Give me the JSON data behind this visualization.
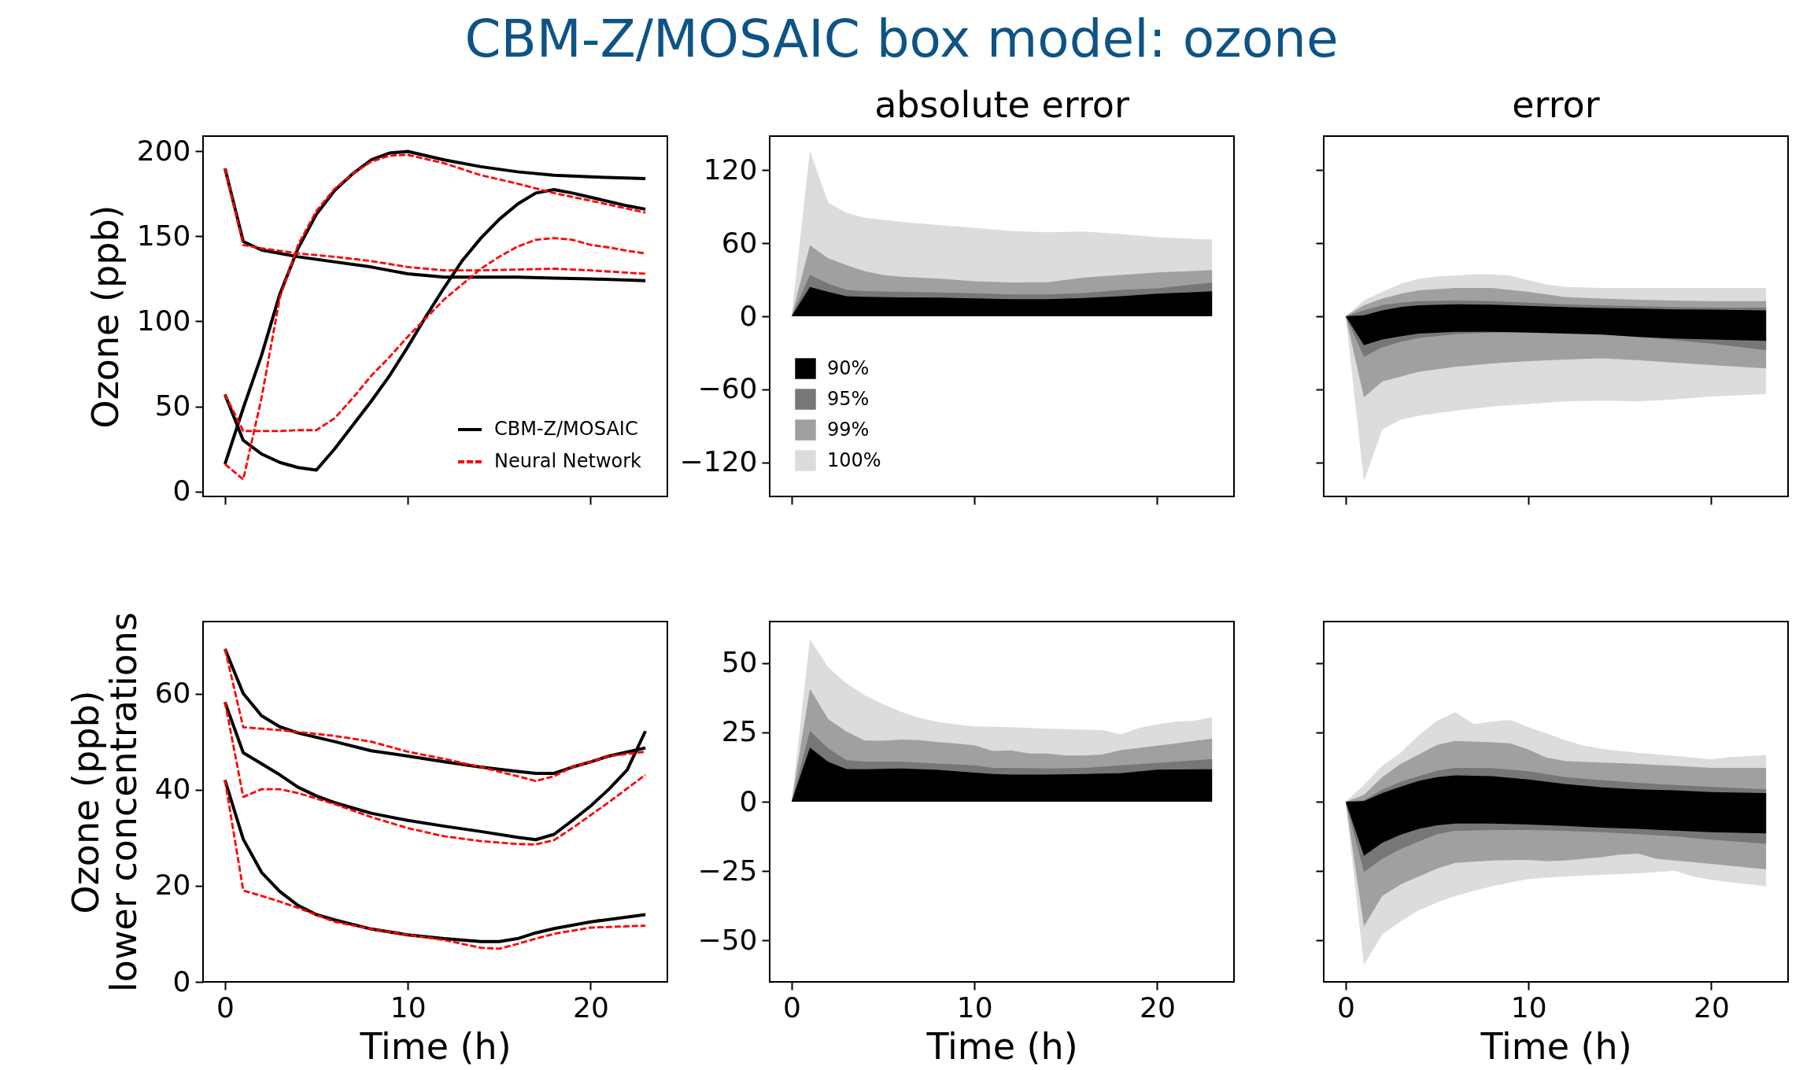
{
  "chart_data": [
    {
      "type": "line",
      "title": "CBM-Z/MOSAIC box model: ozone",
      "ylabel": "Ozone (ppb)",
      "xlim": [
        -1.2,
        24.2
      ],
      "xticks": [
        0,
        10,
        20
      ],
      "ylim": [
        -3,
        209
      ],
      "yticks": [
        0,
        50,
        100,
        150,
        200
      ],
      "tick_labels": "y",
      "legend": "bottom right",
      "series": [
        {
          "name": "CBM-Z/MOSAIC",
          "color": "#000000",
          "x": [
            0,
            1,
            2,
            4,
            6,
            8,
            10,
            12,
            14,
            16,
            18,
            20,
            23
          ],
          "values": [
            190,
            147,
            142,
            138,
            135,
            132,
            128,
            126,
            126,
            126,
            125.5,
            125,
            124
          ]
        },
        {
          "color": "#000000",
          "x": [
            0,
            1,
            2,
            3,
            4,
            5,
            6,
            7,
            8,
            9,
            10,
            12,
            14,
            16,
            18,
            20,
            23
          ],
          "values": [
            16,
            49,
            80,
            116,
            143,
            163,
            177,
            187,
            195,
            199,
            200,
            195,
            191,
            188,
            186,
            185,
            184
          ]
        },
        {
          "color": "#000000",
          "x": [
            0,
            1,
            2,
            3,
            4,
            5,
            6,
            7,
            8,
            9,
            10,
            11,
            12,
            13,
            14,
            15,
            16,
            17,
            18,
            19,
            20,
            21,
            22,
            23
          ],
          "values": [
            57,
            30,
            22,
            17,
            14,
            12.5,
            25,
            39,
            53,
            68,
            85,
            103,
            120,
            136,
            149,
            160,
            169,
            175.5,
            177.5,
            175.5,
            173,
            170.5,
            168,
            166
          ]
        },
        {
          "name": "Neural Network",
          "color": "#ff0000",
          "line_style": "dashed",
          "x": [
            0,
            1,
            2,
            4,
            6,
            8,
            10,
            12,
            14,
            16,
            18,
            20,
            23
          ],
          "values": [
            190,
            145,
            143,
            140,
            138,
            135.5,
            132,
            130,
            130,
            130.5,
            131,
            130,
            128
          ]
        },
        {
          "color": "#ff0000",
          "line_style": "dashed",
          "x": [
            0,
            1,
            2,
            3,
            4,
            5,
            6,
            7,
            8,
            9,
            10,
            12,
            14,
            16,
            18,
            20,
            23
          ],
          "values": [
            16,
            7,
            55,
            114,
            145,
            165,
            178,
            187,
            194,
            197.5,
            198,
            193,
            186,
            181,
            175.5,
            171,
            164
          ]
        },
        {
          "color": "#ff0000",
          "line_style": "dashed",
          "x": [
            0,
            1,
            2,
            3,
            4,
            5,
            6,
            7,
            8,
            9,
            10,
            11,
            12,
            13,
            14,
            15,
            16,
            17,
            18,
            19,
            20,
            21,
            22,
            23
          ],
          "values": [
            57,
            35.5,
            35.5,
            35.5,
            36,
            36,
            43,
            55,
            68,
            79,
            91,
            102,
            113,
            122,
            131,
            138,
            144,
            148,
            149,
            148,
            145,
            143.5,
            141.5,
            140
          ]
        }
      ]
    },
    {
      "type": "area",
      "title": "absolute error",
      "xlim": [
        -1.2,
        24.2
      ],
      "xticks": [
        0,
        10,
        20
      ],
      "ylim": [
        -148,
        148
      ],
      "yticks": [
        -120,
        -60,
        0,
        60,
        120
      ],
      "tick_labels": "y",
      "legend": "bottom left",
      "series": [
        {
          "name": "90%",
          "color": "#000000",
          "x": [
            0,
            1,
            2,
            3,
            4,
            6,
            8,
            10,
            12,
            14,
            16,
            18,
            20,
            23
          ],
          "values": [
            0,
            24,
            20,
            16.5,
            16,
            15.5,
            15.3,
            14.7,
            14,
            14,
            15,
            16.5,
            18.6,
            20.5
          ]
        },
        {
          "name": "95%",
          "color": "#777777",
          "x": [
            0,
            1,
            2,
            3,
            4,
            6,
            8,
            10,
            12,
            14,
            16,
            18,
            20,
            23
          ],
          "values": [
            0,
            34,
            26.9,
            21.7,
            20.7,
            20,
            19.5,
            18.9,
            18,
            18,
            19,
            21.7,
            23,
            27.8
          ]
        },
        {
          "name": "99%",
          "color": "#a0a0a0",
          "x": [
            0,
            1,
            2,
            3,
            4,
            5,
            6,
            8,
            10,
            12,
            14,
            16,
            18,
            20,
            23
          ],
          "values": [
            0,
            58.3,
            47.6,
            42,
            37,
            34,
            32.5,
            31,
            28.7,
            27.8,
            28,
            31.8,
            33.9,
            36,
            37.9
          ]
        },
        {
          "name": "100%",
          "color": "#dcdcdc",
          "x": [
            0,
            1,
            2,
            3,
            4,
            6,
            8,
            10,
            12,
            14,
            16,
            18,
            20,
            23
          ],
          "values": [
            0,
            136,
            93.4,
            85,
            81,
            77.6,
            75,
            72.7,
            70,
            69,
            69.6,
            67.5,
            65,
            63
          ]
        }
      ]
    },
    {
      "type": "area",
      "title": "error",
      "xlim": [
        -1.2,
        24.2
      ],
      "xticks": [
        0,
        10,
        20
      ],
      "ylim": [
        -148,
        148
      ],
      "yticks": [
        -120,
        -60,
        0,
        60,
        120
      ],
      "tick_labels": false,
      "series": [
        {
          "color": "#000000",
          "x": [
            0,
            1,
            2,
            3,
            4,
            6,
            8,
            10,
            12,
            14,
            16,
            18,
            20,
            23
          ],
          "values": [
            0,
            0.8,
            4.9,
            7.6,
            9,
            9.8,
            9.5,
            8.5,
            7.6,
            6.8,
            6.3,
            5.7,
            5.5,
            4.9
          ]
        },
        {
          "color": "#000000",
          "x": [
            0,
            1,
            2,
            3,
            4,
            6,
            8,
            10,
            12,
            14,
            16,
            18,
            20,
            23
          ],
          "values": [
            0,
            -23.7,
            -19.1,
            -16.4,
            -14.2,
            -12.8,
            -12.8,
            -13.4,
            -14.2,
            -15,
            -16.9,
            -18.3,
            -19.1,
            -20.2
          ]
        },
        {
          "color": "#777777",
          "x": [
            0,
            1,
            2,
            3,
            4,
            6,
            8,
            10,
            12,
            14,
            16,
            18,
            20,
            23
          ],
          "values": [
            0,
            4.9,
            9,
            11.2,
            12.5,
            13,
            12.5,
            11.2,
            9.8,
            9,
            8.2,
            7.6,
            7.1,
            7.1
          ]
        },
        {
          "color": "#777777",
          "x": [
            0,
            1,
            2,
            3,
            4,
            6,
            8,
            10,
            12,
            14,
            16,
            18,
            20,
            23
          ],
          "values": [
            0,
            -33.3,
            -25.6,
            -21,
            -17.7,
            -14.7,
            -13.4,
            -12.8,
            -13.4,
            -14.7,
            -16.9,
            -19.6,
            -22.4,
            -27.8
          ]
        },
        {
          "color": "#a0a0a0",
          "x": [
            0,
            1,
            2,
            3,
            4,
            6,
            8,
            10,
            12,
            14,
            16,
            18,
            20,
            23
          ],
          "values": [
            0,
            9,
            14.5,
            18.5,
            21.3,
            23.2,
            23.2,
            20,
            15.8,
            14.5,
            13.6,
            13,
            12.5,
            12.5
          ]
        },
        {
          "color": "#a0a0a0",
          "x": [
            0,
            1,
            2,
            3,
            4,
            6,
            8,
            10,
            12,
            14,
            16,
            18,
            20,
            23
          ],
          "values": [
            0,
            -66.5,
            -53.7,
            -49.6,
            -45.5,
            -41.5,
            -38.7,
            -36.8,
            -35.5,
            -34.6,
            -36,
            -38.2,
            -40,
            -42.8
          ]
        },
        {
          "color": "#dcdcdc",
          "x": [
            0,
            1,
            2,
            3,
            4,
            5,
            6,
            7,
            8,
            9,
            10,
            11,
            12,
            14,
            16,
            18,
            20,
            23
          ],
          "values": [
            0,
            13,
            20,
            26.7,
            30.8,
            32.7,
            33.5,
            34.4,
            34.4,
            33.5,
            29.5,
            26.2,
            24,
            23.2,
            23.2,
            23.2,
            23.2,
            23.2
          ]
        },
        {
          "color": "#dcdcdc",
          "x": [
            0,
            1,
            2,
            3,
            4,
            5,
            6,
            7,
            8,
            9,
            10,
            11,
            12,
            14,
            16,
            18,
            20,
            23
          ],
          "values": [
            0,
            -135.5,
            -93,
            -85,
            -81.8,
            -79.5,
            -77.5,
            -76,
            -74.2,
            -73,
            -72,
            -71,
            -70,
            -69.3,
            -70,
            -68.2,
            -66,
            -63.8
          ]
        }
      ]
    },
    {
      "type": "line",
      "ylabel": "Ozone (ppb)\nlower concentrations",
      "xlabel": "Time (h)",
      "xlim": [
        -1.2,
        24.2
      ],
      "xticks": [
        0,
        10,
        20
      ],
      "ylim": [
        0,
        75
      ],
      "yticks": [
        0,
        20,
        40,
        60
      ],
      "series": [
        {
          "color": "#000000",
          "x": [
            0,
            1,
            2,
            3,
            4,
            6,
            8,
            10,
            12,
            14,
            16,
            17,
            18,
            19,
            20,
            21,
            23
          ],
          "values": [
            69.3,
            60,
            55.4,
            53.1,
            51.8,
            50,
            48.1,
            47,
            45.8,
            44.7,
            43.8,
            43.4,
            43.4,
            44.7,
            45.8,
            47,
            48.7
          ]
        },
        {
          "color": "#000000",
          "x": [
            0,
            1,
            2,
            3,
            4,
            5,
            6,
            8,
            10,
            12,
            14,
            16,
            17,
            18,
            19,
            20,
            21,
            22,
            23
          ],
          "values": [
            58.2,
            47.7,
            45.4,
            43.1,
            40.5,
            38.7,
            37.3,
            35.1,
            33.6,
            32.4,
            31.3,
            30.1,
            29.6,
            30.7,
            33.6,
            36.6,
            40.1,
            44.1,
            52.2
          ]
        },
        {
          "color": "#000000",
          "x": [
            0,
            1,
            2,
            3,
            4,
            5,
            6,
            8,
            10,
            12,
            14,
            15,
            16,
            17,
            18,
            20,
            23
          ],
          "values": [
            42,
            29.7,
            22.8,
            18.8,
            15.9,
            14,
            12.9,
            11,
            9.8,
            9,
            8.4,
            8.4,
            9,
            10.2,
            11.1,
            12.5,
            14
          ]
        },
        {
          "color": "#ff0000",
          "line_style": "dashed",
          "x": [
            0,
            1,
            2,
            3,
            4,
            6,
            8,
            10,
            12,
            14,
            16,
            17,
            18,
            19,
            20,
            21,
            23
          ],
          "values": [
            69.3,
            53,
            52.7,
            52.4,
            52,
            51.2,
            50,
            47.9,
            46.4,
            44.7,
            42.8,
            41.8,
            42.8,
            44.7,
            45.8,
            47,
            47.9
          ]
        },
        {
          "color": "#ff0000",
          "line_style": "dashed",
          "x": [
            0,
            1,
            2,
            3,
            4,
            6,
            8,
            10,
            12,
            14,
            16,
            17,
            18,
            19,
            20,
            21,
            23
          ],
          "values": [
            58.2,
            38.5,
            40.1,
            40.1,
            39.3,
            37,
            34.3,
            32,
            30.3,
            29.3,
            28.7,
            28.6,
            29.5,
            32,
            34.7,
            37.4,
            43.1
          ]
        },
        {
          "color": "#ff0000",
          "line_style": "dashed",
          "x": [
            0,
            1,
            2,
            3,
            4,
            6,
            8,
            10,
            12,
            14,
            15,
            16,
            17,
            18,
            20,
            23
          ],
          "values": [
            42,
            19,
            17.9,
            16.7,
            15.4,
            12.5,
            11,
            9.8,
            8.7,
            7.1,
            6.9,
            7.9,
            9,
            10,
            11.3,
            11.7
          ]
        }
      ]
    },
    {
      "type": "area",
      "xlabel": "Time (h)",
      "xlim": [
        -1.2,
        24.2
      ],
      "xticks": [
        0,
        10,
        20
      ],
      "ylim": [
        -65,
        65
      ],
      "yticks": [
        -50,
        -25,
        0,
        25,
        50
      ],
      "series": [
        {
          "color": "#000000",
          "x": [
            0,
            1,
            2,
            3,
            4,
            6,
            8,
            10,
            11,
            12,
            14,
            16,
            18,
            20,
            23
          ],
          "values": [
            0,
            19.5,
            14.4,
            11.8,
            11.7,
            12,
            11.5,
            10.5,
            10,
            9.8,
            9.8,
            10,
            10.3,
            11.6,
            11.7
          ]
        },
        {
          "color": "#777777",
          "x": [
            0,
            1,
            2,
            3,
            4,
            6,
            8,
            10,
            11,
            12,
            14,
            16,
            18,
            20,
            23
          ],
          "values": [
            0,
            25.6,
            19.2,
            15,
            14.5,
            14.5,
            13.8,
            13.1,
            12.2,
            12.2,
            12,
            12.2,
            13.1,
            14,
            15.4
          ]
        },
        {
          "color": "#a0a0a0",
          "x": [
            0,
            1,
            2,
            3,
            4,
            5,
            6,
            7,
            8,
            9,
            10,
            11,
            12,
            13,
            14,
            15,
            16,
            17,
            18,
            20,
            21,
            23
          ],
          "values": [
            0,
            40.7,
            29.8,
            25.3,
            22.1,
            22,
            22.4,
            22.2,
            21.5,
            21,
            20.4,
            18.3,
            18.5,
            17.4,
            17.4,
            16.7,
            16.7,
            17,
            18.6,
            20.2,
            21,
            22.8
          ]
        },
        {
          "color": "#dcdcdc",
          "x": [
            0,
            1,
            2,
            3,
            4,
            5,
            6,
            7,
            8,
            9,
            10,
            12,
            14,
            16,
            17,
            18,
            19,
            20,
            21,
            22,
            23
          ],
          "values": [
            0,
            58.7,
            48.5,
            42.7,
            38.4,
            35.2,
            32.4,
            30.2,
            28.8,
            27.9,
            27.2,
            26.9,
            26.3,
            26,
            25.8,
            24.3,
            26.6,
            27.9,
            28.9,
            29.2,
            30.5
          ]
        }
      ]
    },
    {
      "type": "area",
      "xlabel": "Time (h)",
      "xlim": [
        -1.2,
        24.2
      ],
      "xticks": [
        0,
        10,
        20
      ],
      "ylim": [
        -65,
        65
      ],
      "yticks": [
        -50,
        -25,
        0,
        25,
        50
      ],
      "tick_labels": "x",
      "series": [
        {
          "color": "#000000",
          "x": [
            0,
            1,
            2,
            3,
            4,
            5,
            6,
            8,
            10,
            12,
            14,
            16,
            18,
            20,
            23
          ],
          "values": [
            0,
            0.2,
            3.1,
            5.4,
            7.5,
            8.9,
            9.5,
            9.2,
            8,
            6.4,
            5.2,
            4.5,
            4.1,
            3.5,
            3.1
          ]
        },
        {
          "color": "#000000",
          "x": [
            0,
            1,
            2,
            3,
            4,
            5,
            6,
            8,
            10,
            12,
            14,
            16,
            18,
            20,
            23
          ],
          "values": [
            0,
            -19.5,
            -14.8,
            -11.9,
            -9.8,
            -8.5,
            -7.9,
            -7.9,
            -8.2,
            -8.7,
            -9.4,
            -9.8,
            -10.4,
            -11,
            -11.4
          ]
        },
        {
          "color": "#777777",
          "x": [
            0,
            1,
            2,
            3,
            4,
            5,
            6,
            8,
            10,
            12,
            14,
            16,
            18,
            20,
            23
          ],
          "values": [
            0,
            0.6,
            4.3,
            7.2,
            9.2,
            11.2,
            12.2,
            12.1,
            11,
            8.9,
            7.8,
            6.8,
            6,
            5.4,
            4.5
          ]
        },
        {
          "color": "#777777",
          "x": [
            0,
            1,
            2,
            3,
            4,
            5,
            6,
            8,
            10,
            12,
            14,
            16,
            18,
            20,
            23
          ],
          "values": [
            0,
            -25.3,
            -20.6,
            -17.1,
            -14.3,
            -11.7,
            -10.5,
            -10.2,
            -10.2,
            -10.5,
            -11,
            -11.7,
            -12.5,
            -13.7,
            -15.2
          ]
        },
        {
          "color": "#a0a0a0",
          "x": [
            0,
            1,
            2,
            3,
            4,
            5,
            6,
            8,
            9,
            10,
            11,
            12,
            14,
            15,
            16,
            17,
            18,
            20,
            23
          ],
          "values": [
            0,
            2.5,
            8.9,
            13.6,
            17,
            20.5,
            21.9,
            21.4,
            21.1,
            18.8,
            15.9,
            14.7,
            14.1,
            13.9,
            13.6,
            13.3,
            13,
            12.2,
            12.2
          ]
        },
        {
          "color": "#a0a0a0",
          "x": [
            0,
            1,
            2,
            3,
            4,
            5,
            6,
            8,
            9,
            10,
            11,
            12,
            14,
            15,
            16,
            17,
            18,
            20,
            23
          ],
          "values": [
            0,
            -45,
            -34,
            -29.9,
            -27,
            -24.1,
            -22.1,
            -21.2,
            -21.1,
            -21,
            -21.4,
            -21.2,
            -20,
            -19.1,
            -18.7,
            -20.6,
            -21.2,
            -22.4,
            -24.4
          ]
        },
        {
          "color": "#dcdcdc",
          "x": [
            0,
            1,
            2,
            3,
            4,
            5,
            6,
            7,
            8,
            9,
            10,
            11,
            12,
            13,
            14,
            16,
            18,
            19,
            20,
            21,
            23
          ],
          "values": [
            0,
            6,
            13,
            17.6,
            24,
            29.2,
            32.3,
            28,
            28.9,
            29.5,
            26.9,
            24.6,
            22.2,
            20.3,
            19.1,
            17.6,
            16.5,
            15.9,
            15.3,
            16.1,
            16.8
          ]
        },
        {
          "color": "#dcdcdc",
          "x": [
            0,
            1,
            2,
            3,
            4,
            5,
            6,
            7,
            8,
            9,
            10,
            11,
            12,
            13,
            14,
            16,
            18,
            19,
            20,
            21,
            23
          ],
          "values": [
            0,
            -58.9,
            -47.9,
            -43.2,
            -39.2,
            -36.3,
            -34,
            -32.2,
            -30.5,
            -29.2,
            -27.9,
            -27.4,
            -27,
            -26.7,
            -26.4,
            -25.8,
            -24.9,
            -27,
            -28.2,
            -29,
            -30.5
          ]
        }
      ]
    }
  ]
}
